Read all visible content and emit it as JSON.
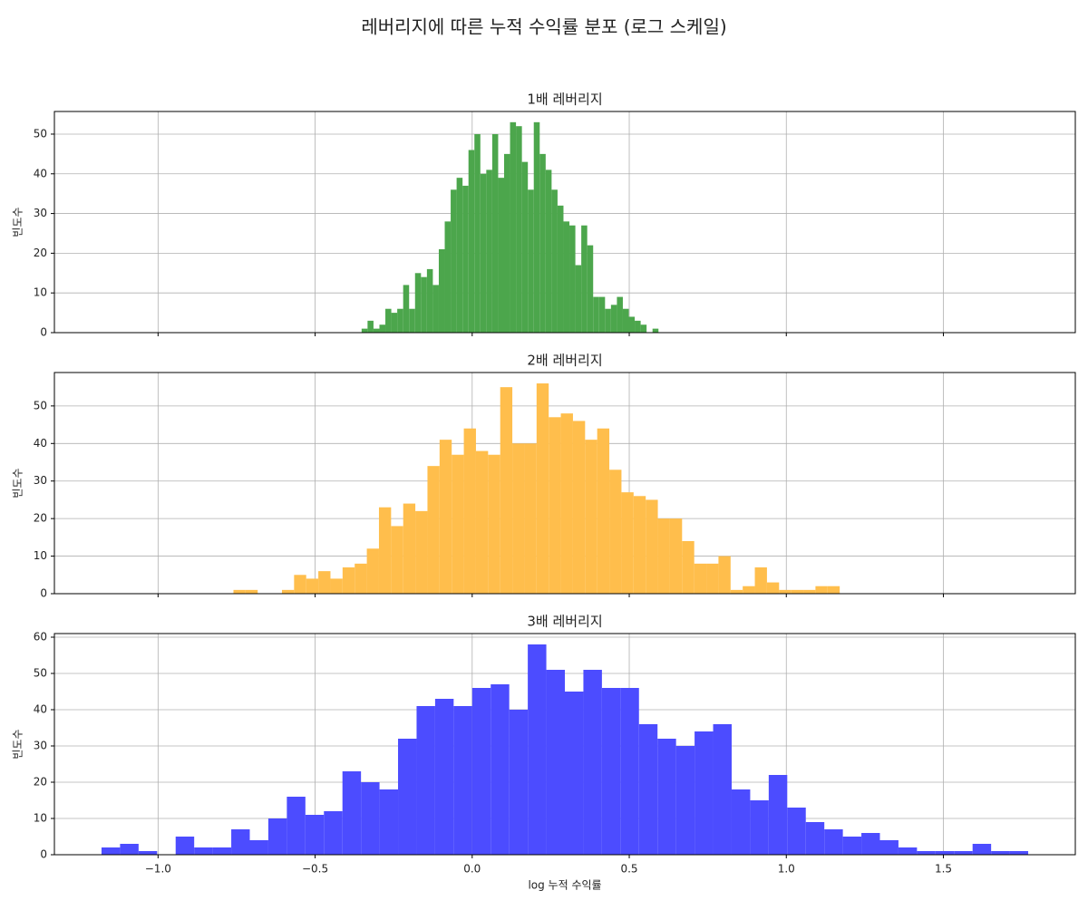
{
  "title": "레버리지에 따른 누적 수익률 분포 (로그 스케일)",
  "chart_data": [
    {
      "type": "histogram",
      "title": "1배 레버리지",
      "ylabel": "빈도수",
      "color": "#4ca64c",
      "grid": true,
      "bins": [
        -0.352,
        -0.3331,
        -0.3142,
        -0.2953,
        -0.2764,
        -0.2575,
        -0.2386,
        -0.2197,
        -0.2008,
        -0.1819,
        -0.163,
        -0.1441,
        -0.1252,
        -0.1063,
        -0.0874,
        -0.0685,
        -0.0496,
        -0.0307,
        -0.0118,
        0.0071,
        0.026,
        0.0449,
        0.0638,
        0.0827,
        0.1016,
        0.1205,
        0.1394,
        0.1583,
        0.1772,
        0.1961,
        0.215,
        0.2339,
        0.2528,
        0.2717,
        0.2906,
        0.3095,
        0.3284,
        0.3473,
        0.3662,
        0.3851,
        0.404,
        0.4229,
        0.4418,
        0.4607,
        0.4796,
        0.4985,
        0.5174,
        0.5363,
        0.5552,
        0.5741,
        0.593
      ],
      "counts": [
        1,
        3,
        1,
        2,
        6,
        5,
        6,
        12,
        6,
        15,
        14,
        16,
        12,
        21,
        28,
        36,
        39,
        37,
        46,
        50,
        40,
        41,
        50,
        39,
        45,
        53,
        52,
        43,
        36,
        53,
        45,
        41,
        36,
        32,
        28,
        27,
        17,
        27,
        22,
        9,
        9,
        6,
        7,
        9,
        6,
        4,
        3,
        2,
        0,
        1
      ],
      "xlim": [
        -1.33,
        1.92
      ],
      "ylim": [
        0,
        55.7
      ],
      "xticks": [
        -1,
        -0.5,
        0,
        0.5,
        1,
        1.5
      ],
      "yticks": [
        0,
        10,
        20,
        30,
        40,
        50
      ]
    },
    {
      "type": "histogram",
      "title": "2배 레버리지",
      "ylabel": "빈도수",
      "color": "#ffbe4c",
      "grid": true,
      "bins": [
        -0.76,
        -0.7214,
        -0.6828,
        -0.6442,
        -0.6056,
        -0.567,
        -0.5284,
        -0.4898,
        -0.4512,
        -0.4126,
        -0.374,
        -0.3354,
        -0.2968,
        -0.2582,
        -0.2196,
        -0.181,
        -0.1424,
        -0.1038,
        -0.0652,
        -0.0266,
        0.012,
        0.0506,
        0.0892,
        0.1278,
        0.1664,
        0.205,
        0.2436,
        0.2822,
        0.3208,
        0.3594,
        0.398,
        0.4366,
        0.4752,
        0.5138,
        0.5524,
        0.591,
        0.6296,
        0.6682,
        0.7068,
        0.7454,
        0.784,
        0.8226,
        0.8612,
        0.8998,
        0.9384,
        0.977,
        1.0156,
        1.0542,
        1.0928,
        1.1314,
        1.17
      ],
      "counts": [
        1,
        1,
        0,
        0,
        1,
        5,
        4,
        6,
        4,
        7,
        8,
        12,
        23,
        18,
        24,
        22,
        34,
        41,
        37,
        44,
        38,
        37,
        55,
        40,
        40,
        56,
        47,
        48,
        46,
        41,
        44,
        33,
        27,
        26,
        25,
        20,
        20,
        14,
        8,
        8,
        10,
        1,
        2,
        7,
        3,
        1,
        1,
        1,
        2,
        2
      ],
      "xlim": [
        -1.33,
        1.92
      ],
      "ylim": [
        0,
        58.9
      ],
      "xticks": [
        -1,
        -0.5,
        0,
        0.5,
        1,
        1.5
      ],
      "yticks": [
        0,
        10,
        20,
        30,
        40,
        50
      ]
    },
    {
      "type": "histogram",
      "title": "3배 레버리지",
      "ylabel": "빈도수",
      "xlabel": "log 누적 수익률",
      "color": "#4c4cff",
      "grid": true,
      "bins": [
        -1.18,
        -1.121,
        -1.062,
        -1.003,
        -0.944,
        -0.885,
        -0.826,
        -0.767,
        -0.708,
        -0.649,
        -0.59,
        -0.531,
        -0.472,
        -0.413,
        -0.354,
        -0.295,
        -0.236,
        -0.177,
        -0.118,
        -0.059,
        0,
        0.059,
        0.118,
        0.177,
        0.236,
        0.295,
        0.354,
        0.413,
        0.472,
        0.531,
        0.59,
        0.649,
        0.708,
        0.767,
        0.826,
        0.885,
        0.944,
        1.003,
        1.062,
        1.121,
        1.18,
        1.239,
        1.298,
        1.357,
        1.416,
        1.475,
        1.534,
        1.593,
        1.652,
        1.711,
        1.77
      ],
      "counts": [
        2,
        3,
        1,
        0,
        5,
        2,
        2,
        7,
        4,
        10,
        16,
        11,
        12,
        23,
        20,
        18,
        32,
        41,
        43,
        41,
        46,
        47,
        40,
        58,
        51,
        45,
        51,
        46,
        46,
        36,
        32,
        30,
        34,
        36,
        18,
        15,
        22,
        13,
        9,
        7,
        5,
        6,
        4,
        2,
        1,
        1,
        1,
        3,
        1,
        1
      ],
      "xlim": [
        -1.33,
        1.92
      ],
      "ylim": [
        0,
        61
      ],
      "xticks": [
        {
          "value": -1.0,
          "label": "−1.0"
        },
        {
          "value": -0.5,
          "label": "−0.5"
        },
        {
          "value": 0.0,
          "label": "0.0"
        },
        0.5,
        {
          "value": 1.0,
          "label": "1.0"
        },
        1.5
      ],
      "yticks": [
        0,
        10,
        20,
        30,
        40,
        50,
        60
      ]
    }
  ]
}
